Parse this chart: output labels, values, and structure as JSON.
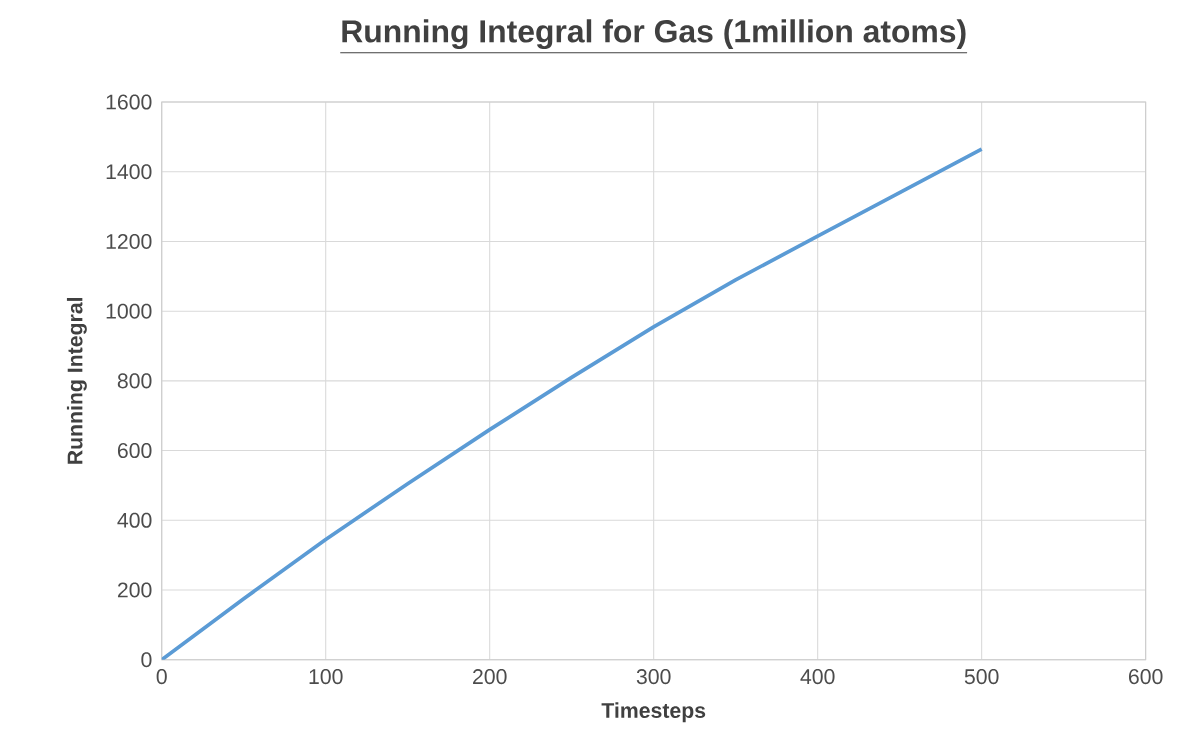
{
  "chart_data": {
    "type": "line",
    "title": "Running Integral for Gas (1million atoms)",
    "xlabel": "Timesteps",
    "ylabel": "Running Integral",
    "x": [
      0,
      50,
      100,
      150,
      200,
      250,
      300,
      350,
      400,
      450,
      500
    ],
    "series": [
      {
        "color": "#5b9bd5",
        "values": [
          0,
          175,
          345,
          505,
          660,
          810,
          955,
          1090,
          1215,
          1340,
          1465
        ]
      }
    ],
    "xlim": [
      0,
      600
    ],
    "ylim": [
      0,
      1600
    ],
    "xticks": [
      0,
      100,
      200,
      300,
      400,
      500,
      600
    ],
    "yticks": [
      0,
      200,
      400,
      600,
      800,
      1000,
      1200,
      1400,
      1600
    ],
    "grid": true,
    "marker": "none",
    "line_style": "solid"
  }
}
